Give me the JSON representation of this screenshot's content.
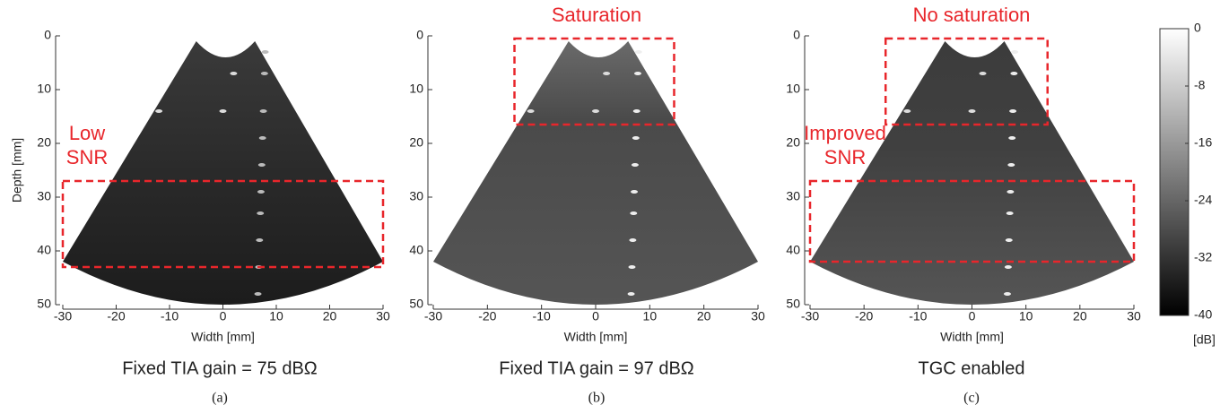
{
  "panels": [
    {
      "xticks": [
        -30,
        -20,
        -10,
        0,
        10,
        20,
        30
      ],
      "yticks": [
        0,
        10,
        20,
        30,
        40,
        50
      ],
      "x_label": "Width [mm]",
      "y_label": "Depth [mm]",
      "annotations": [
        "Low",
        "SNR"
      ],
      "caption": "Fixed TIA gain = 75 dBΩ",
      "sublabel": "(a)"
    },
    {
      "xticks": [
        -30,
        -20,
        -10,
        0,
        10,
        20,
        30
      ],
      "yticks": [
        0,
        10,
        20,
        30,
        40,
        50
      ],
      "x_label": "Width [mm]",
      "annotations": [
        "Saturation"
      ],
      "caption": "Fixed TIA gain = 97 dBΩ",
      "sublabel": "(b)"
    },
    {
      "xticks": [
        -30,
        -20,
        -10,
        0,
        10,
        20,
        30
      ],
      "yticks": [
        0,
        10,
        20,
        30,
        40,
        50
      ],
      "x_label": "Width [mm]",
      "annotations": [
        "No saturation",
        "Improved",
        "SNR"
      ],
      "caption": "TGC enabled",
      "sublabel": "(c)"
    }
  ],
  "colorbar": {
    "ticks": [
      0,
      -8,
      -16,
      -24,
      -32,
      -40
    ],
    "unit": "[dB]"
  }
}
